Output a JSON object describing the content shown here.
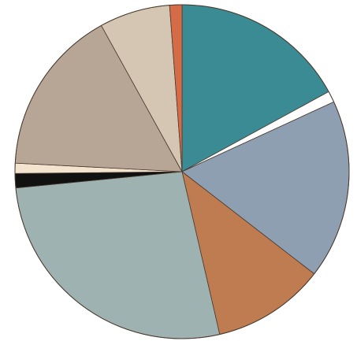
{
  "chart_data": {
    "type": "pie",
    "title": "",
    "start_angle_deg": 0,
    "direction": "clockwise",
    "legend": "none",
    "slices": [
      {
        "value": 17.2,
        "color": "#3a8b93"
      },
      {
        "value": 1.1,
        "color": "#ffffff"
      },
      {
        "value": 17.5,
        "color": "#8d9fb0"
      },
      {
        "value": 11.0,
        "color": "#be7c50"
      },
      {
        "value": 27.3,
        "color": "#9eb3b1"
      },
      {
        "value": 1.4,
        "color": "#111111"
      },
      {
        "value": 1.0,
        "color": "#f3e4d0"
      },
      {
        "value": 16.3,
        "color": "#b7a595"
      },
      {
        "value": 6.9,
        "color": "#d5c6b3"
      },
      {
        "value": 1.2,
        "color": "#d66c47"
      }
    ]
  }
}
